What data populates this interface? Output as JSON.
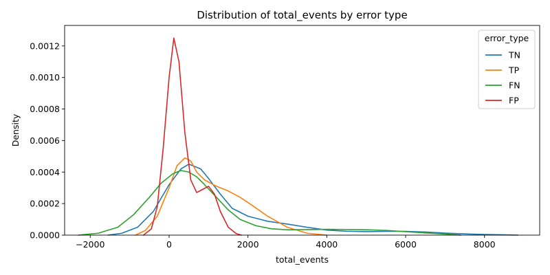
{
  "chart_data": {
    "type": "line",
    "title": "Distribution of total_events by error type",
    "xlabel": "total_events",
    "ylabel": "Density",
    "xlim": [
      -2650,
      9400
    ],
    "ylim": [
      0,
      0.00133
    ],
    "xticks": [
      -2000,
      0,
      2000,
      4000,
      6000,
      8000
    ],
    "xtick_labels": [
      "−2000",
      "0",
      "2000",
      "4000",
      "6000",
      "8000"
    ],
    "yticks": [
      0,
      0.0002,
      0.0004,
      0.0006,
      0.0008,
      0.001,
      0.0012
    ],
    "ytick_labels": [
      "0.0000",
      "0.0002",
      "0.0004",
      "0.0006",
      "0.0008",
      "0.0010",
      "0.0012"
    ],
    "grid": false,
    "legend": {
      "title": "error_type",
      "placement": "top-right"
    },
    "series": [
      {
        "name": "TN",
        "color": "#1f77b4",
        "points": [
          [
            -1550,
            0
          ],
          [
            -1200,
            1.2e-05
          ],
          [
            -800,
            5e-05
          ],
          [
            -400,
            0.00015
          ],
          [
            0,
            0.00032
          ],
          [
            300,
            0.00042
          ],
          [
            500,
            0.00045
          ],
          [
            800,
            0.00042
          ],
          [
            1000,
            0.00036
          ],
          [
            1300,
            0.00026
          ],
          [
            1600,
            0.00017
          ],
          [
            2000,
            0.00012
          ],
          [
            2500,
            8.8e-05
          ],
          [
            3000,
            7e-05
          ],
          [
            3500,
            5e-05
          ],
          [
            4000,
            3.2e-05
          ],
          [
            4500,
            2.5e-05
          ],
          [
            5000,
            2.2e-05
          ],
          [
            5500,
            2.4e-05
          ],
          [
            6000,
            2.4e-05
          ],
          [
            6500,
            2e-05
          ],
          [
            7000,
            1.3e-05
          ],
          [
            7500,
            8e-06
          ],
          [
            8000,
            4e-06
          ],
          [
            8500,
            2e-06
          ],
          [
            8850,
            0
          ]
        ]
      },
      {
        "name": "TP",
        "color": "#ff7f0e",
        "points": [
          [
            -850,
            0
          ],
          [
            -600,
            3e-05
          ],
          [
            -300,
            0.00012
          ],
          [
            0,
            0.0003
          ],
          [
            200,
            0.00044
          ],
          [
            400,
            0.00049
          ],
          [
            550,
            0.00047
          ],
          [
            700,
            0.0004
          ],
          [
            900,
            0.00035
          ],
          [
            1200,
            0.00031
          ],
          [
            1500,
            0.00028
          ],
          [
            1800,
            0.00024
          ],
          [
            2100,
            0.00019
          ],
          [
            2500,
            0.00012
          ],
          [
            3000,
            5e-05
          ],
          [
            3500,
            1.2e-05
          ],
          [
            4000,
            0
          ]
        ]
      },
      {
        "name": "FN",
        "color": "#2ca02c",
        "points": [
          [
            -2300,
            0
          ],
          [
            -1800,
            1.2e-05
          ],
          [
            -1300,
            5e-05
          ],
          [
            -900,
            0.00013
          ],
          [
            -500,
            0.00024
          ],
          [
            -200,
            0.00033
          ],
          [
            100,
            0.00039
          ],
          [
            300,
            0.00041
          ],
          [
            500,
            0.0004
          ],
          [
            700,
            0.00037
          ],
          [
            900,
            0.00032
          ],
          [
            1200,
            0.00024
          ],
          [
            1500,
            0.00016
          ],
          [
            1800,
            0.0001
          ],
          [
            2200,
            6e-05
          ],
          [
            2600,
            4e-05
          ],
          [
            3000,
            3.4e-05
          ],
          [
            3500,
            3.5e-05
          ],
          [
            4000,
            3.7e-05
          ],
          [
            4500,
            3.6e-05
          ],
          [
            5000,
            3.4e-05
          ],
          [
            5500,
            3e-05
          ],
          [
            6000,
            2.2e-05
          ],
          [
            6500,
            1.4e-05
          ],
          [
            7000,
            7e-06
          ],
          [
            7400,
            0
          ]
        ]
      },
      {
        "name": "FP",
        "color": "#d62728",
        "points": [
          [
            -650,
            0
          ],
          [
            -450,
            4e-05
          ],
          [
            -300,
            0.00018
          ],
          [
            -150,
            0.00055
          ],
          [
            0,
            0.001
          ],
          [
            120,
            0.00125
          ],
          [
            250,
            0.0011
          ],
          [
            400,
            0.00065
          ],
          [
            550,
            0.00035
          ],
          [
            700,
            0.00027
          ],
          [
            850,
            0.00029
          ],
          [
            1000,
            0.00031
          ],
          [
            1150,
            0.00026
          ],
          [
            1300,
            0.00015
          ],
          [
            1500,
            5e-05
          ],
          [
            1700,
            1e-05
          ],
          [
            1830,
            0
          ]
        ]
      }
    ]
  }
}
